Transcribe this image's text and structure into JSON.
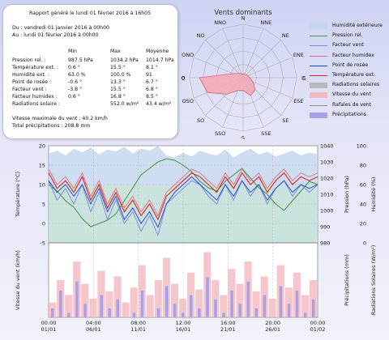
{
  "report": {
    "title": "Rapport généré le lundi 01 février 2016 à 16h05",
    "du": "Du : vendredi 01 janvier 2016 à 00h00",
    "au": "Au : lundi 01 février 2016 à 00h00",
    "col_min": "Min",
    "col_max": "Max",
    "col_moy": "Moyenne",
    "rows": [
      {
        "label": "Pression rel. :",
        "min": "987.5 hPa",
        "max": "1034.2 hPa",
        "moy": "1014.7 hPa"
      },
      {
        "label": "Température ext. :",
        "min": "0.6 °",
        "max": "15.5 °",
        "moy": "8.1 °"
      },
      {
        "label": "Humidité ext. :",
        "min": "63.0 %",
        "max": "100.0 %",
        "moy": "91"
      },
      {
        "label": "Point de rosée :",
        "min": "-0.6 °",
        "max": "13.3 °",
        "moy": "6.7 °"
      },
      {
        "label": "Facteur vent :",
        "min": "-3.8 °",
        "max": "15.5 °",
        "moy": "6.8 °"
      },
      {
        "label": "Facteur humidex :",
        "min": "0.6 °",
        "max": "16.8 °",
        "moy": "8.5 °"
      },
      {
        "label": "Radiations solaire :",
        "min": "",
        "max": "552.0 w/m²",
        "moy": "43.4 w/m²"
      }
    ],
    "vent_max": "Vitesse maximale du vent : 40.2 km/h",
    "precip_total": "Total précipitations : 208.8 mm"
  },
  "rose": {
    "title": "Vents dominants",
    "directions": [
      "N",
      "NNE",
      "NE",
      "ENE",
      "E",
      "ESE",
      "SE",
      "SSE",
      "S",
      "SSO",
      "SO",
      "OSO",
      "O",
      "ONO",
      "NO",
      "NNO"
    ],
    "ticks": [
      "0",
      "5"
    ],
    "frequency": [
      0.3,
      0.4,
      0.4,
      0.5,
      0.6,
      1.0,
      1.6,
      1.8,
      1.2,
      1.3,
      2.2,
      3.6,
      4.1,
      1.0,
      0.6,
      0.4
    ],
    "rmax": 5,
    "fill": "#f4a8b4",
    "stroke": "#e06070"
  },
  "legend": [
    {
      "label": "Humidité extérieure",
      "color": "#c5d7ee",
      "style": "fill"
    },
    {
      "label": "Pression rel.",
      "color": "#3a9a3a",
      "style": "line"
    },
    {
      "label": "Facteur vent",
      "color": "#7a86e0",
      "style": "line"
    },
    {
      "label": "Facteur humidex",
      "color": "#e07080",
      "style": "line"
    },
    {
      "label": "Point de rosée",
      "color": "#2040d0",
      "style": "line"
    },
    {
      "label": "Température ext.",
      "color": "#e02020",
      "style": "line"
    },
    {
      "label": "Radiations solaires",
      "color": "#b8b8b8",
      "style": "fill"
    },
    {
      "label": "Vitesse du vent",
      "color": "#f4b8c0",
      "style": "fill"
    },
    {
      "label": "Rafales de vent",
      "color": "#909090",
      "style": "line"
    },
    {
      "label": "Précipitations",
      "color": "#a8a0e8",
      "style": "fill"
    }
  ],
  "chart_data": {
    "type": "line",
    "x_ticks": [
      "00:00\n01/01",
      "04:00\n06/01",
      "08:00\n11/01",
      "12:00\n16/01",
      "16:00\n21/01",
      "20:00\n26/01",
      "00:00\n01/02"
    ],
    "top_panel": {
      "ylabel_left": "Température (°C)",
      "ylabel_mid": "Pression (hPa)",
      "ylabel_right": "Humidité (%)",
      "ylim_left": [
        -5,
        20
      ],
      "yticks_left": [
        -5,
        0,
        5,
        10,
        15,
        20
      ],
      "ylim_pressure": [
        980,
        1040
      ],
      "yticks_pressure": [
        980,
        990,
        1000,
        1010,
        1020,
        1030,
        1040
      ],
      "ylim_humidity": [
        0,
        100
      ],
      "yticks_humidity": [
        0,
        20,
        40,
        60,
        80,
        100
      ],
      "series": [
        {
          "name": "Pression rel.",
          "axis": "pressure",
          "values": [
            1016,
            1012,
            1006,
            1002,
            995,
            990,
            992,
            994,
            998,
            1006,
            1014,
            1022,
            1026,
            1030,
            1032,
            1031,
            1028,
            1024,
            1018,
            1014,
            1012,
            1018,
            1022,
            1026,
            1020,
            1014,
            1010,
            1004,
            1000,
            1006,
            1012,
            1018,
            1016
          ]
        },
        {
          "name": "Température ext.",
          "axis": "temp",
          "values": [
            13,
            9,
            11,
            8,
            12,
            6,
            10,
            4,
            8,
            3,
            6,
            2,
            5,
            1,
            7,
            9,
            11,
            13,
            12,
            10,
            8,
            12,
            9,
            13,
            10,
            12,
            8,
            11,
            13,
            10,
            12,
            11,
            12
          ]
        },
        {
          "name": "Point de rosée",
          "axis": "temp",
          "values": [
            11,
            8,
            10,
            7,
            10,
            5,
            9,
            3,
            7,
            1,
            4,
            0,
            3,
            -1,
            5,
            8,
            10,
            12,
            10,
            8,
            6,
            10,
            7,
            11,
            8,
            10,
            6,
            9,
            11,
            8,
            10,
            9,
            10
          ]
        },
        {
          "name": "Facteur humidex",
          "axis": "temp",
          "values": [
            14,
            10,
            12,
            9,
            13,
            7,
            11,
            5,
            9,
            4,
            7,
            3,
            6,
            2,
            8,
            10,
            12,
            14,
            13,
            11,
            9,
            13,
            10,
            14,
            11,
            13,
            9,
            12,
            14,
            11,
            13,
            12,
            13
          ]
        },
        {
          "name": "Facteur vent",
          "axis": "temp",
          "values": [
            11,
            6,
            9,
            5,
            10,
            3,
            8,
            1,
            6,
            0,
            3,
            -2,
            2,
            -3,
            5,
            7,
            9,
            11,
            10,
            7,
            5,
            10,
            6,
            11,
            7,
            10,
            5,
            9,
            11,
            7,
            10,
            8,
            10
          ]
        },
        {
          "name": "Humidité extérieure",
          "axis": "humidity",
          "values": [
            92,
            95,
            90,
            97,
            93,
            98,
            91,
            96,
            94,
            99,
            92,
            97,
            95,
            100,
            90,
            88,
            93,
            89,
            95,
            92,
            90,
            96,
            88,
            93,
            97,
            91,
            94,
            89,
            92,
            95,
            90,
            93,
            91
          ]
        }
      ]
    },
    "bottom_panel": {
      "ylabel_left": "Vitesse du vent (km/h)",
      "ylabel_mid": "Précipitations (mm)",
      "ylabel_right": "Radiations Solaires (W/m²)",
      "series": [
        {
          "name": "Vitesse du vent",
          "values": [
            8,
            20,
            12,
            30,
            18,
            10,
            25,
            14,
            22,
            8,
            16,
            28,
            12,
            20,
            32,
            18,
            10,
            24,
            15,
            35,
            20,
            12,
            26,
            18,
            30,
            14,
            22,
            10,
            28,
            16,
            24,
            12,
            20
          ]
        },
        {
          "name": "Précipitations",
          "values": [
            2,
            6,
            1,
            8,
            3,
            0,
            5,
            2,
            4,
            0,
            1,
            6,
            0,
            2,
            7,
            3,
            1,
            5,
            2,
            9,
            4,
            1,
            6,
            3,
            8,
            2,
            5,
            0,
            7,
            3,
            6,
            1,
            4
          ]
        }
      ]
    }
  }
}
